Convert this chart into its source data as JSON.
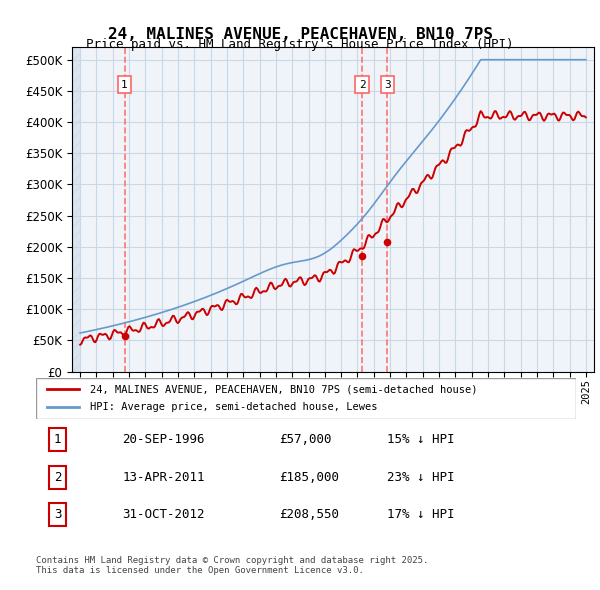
{
  "title": "24, MALINES AVENUE, PEACEHAVEN, BN10 7PS",
  "subtitle": "Price paid vs. HM Land Registry's House Price Index (HPI)",
  "legend_line1": "24, MALINES AVENUE, PEACEHAVEN, BN10 7PS (semi-detached house)",
  "legend_line2": "HPI: Average price, semi-detached house, Lewes",
  "footer": "Contains HM Land Registry data © Crown copyright and database right 2025.\nThis data is licensed under the Open Government Licence v3.0.",
  "sale_dates": [
    1996.72,
    2011.28,
    2012.83
  ],
  "sale_prices": [
    57000,
    185000,
    208550
  ],
  "sale_labels": [
    "1",
    "2",
    "3"
  ],
  "vline_dates": [
    1996.72,
    2011.28,
    2012.83
  ],
  "table": [
    [
      "1",
      "20-SEP-1996",
      "£57,000",
      "15% ↓ HPI"
    ],
    [
      "2",
      "13-APR-2011",
      "£185,000",
      "23% ↓ HPI"
    ],
    [
      "3",
      "31-OCT-2012",
      "£208,550",
      "17% ↓ HPI"
    ]
  ],
  "ylim": [
    0,
    520000
  ],
  "xlim": [
    1993.5,
    2025.5
  ],
  "grid_color": "#c8d8e8",
  "hatch_color": "#dde8f0",
  "line_color_red": "#cc0000",
  "line_color_blue": "#6699cc",
  "vline_color": "#ff6666",
  "background_color": "#f0f4f8"
}
